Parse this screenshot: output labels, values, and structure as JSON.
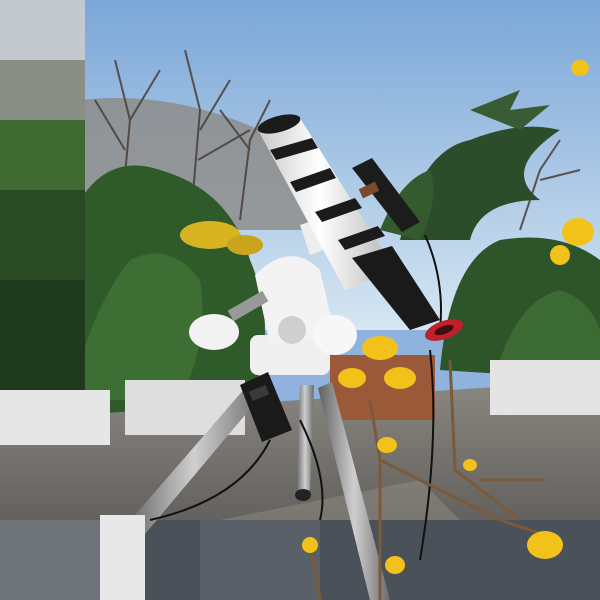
{
  "scene": {
    "description_tags": [
      "sky",
      "bare-trees",
      "evergreen-shrubs",
      "rooftop-terrace",
      "telescope",
      "equatorial-mount",
      "tripod",
      "hand-controller",
      "forsythia-branch",
      "planters"
    ],
    "colors": {
      "sky_top": "#7aa6d8",
      "sky_bottom": "#d6e6f2",
      "foliage": "#2f5a2a",
      "floor": "#6c6a66",
      "tube": "#f1f1f1",
      "tube_ring": "#1b1b1b",
      "blossom": "#f2c21a",
      "red_ring": "#c0202a",
      "planter_terracotta": "#9a5a3a"
    }
  }
}
